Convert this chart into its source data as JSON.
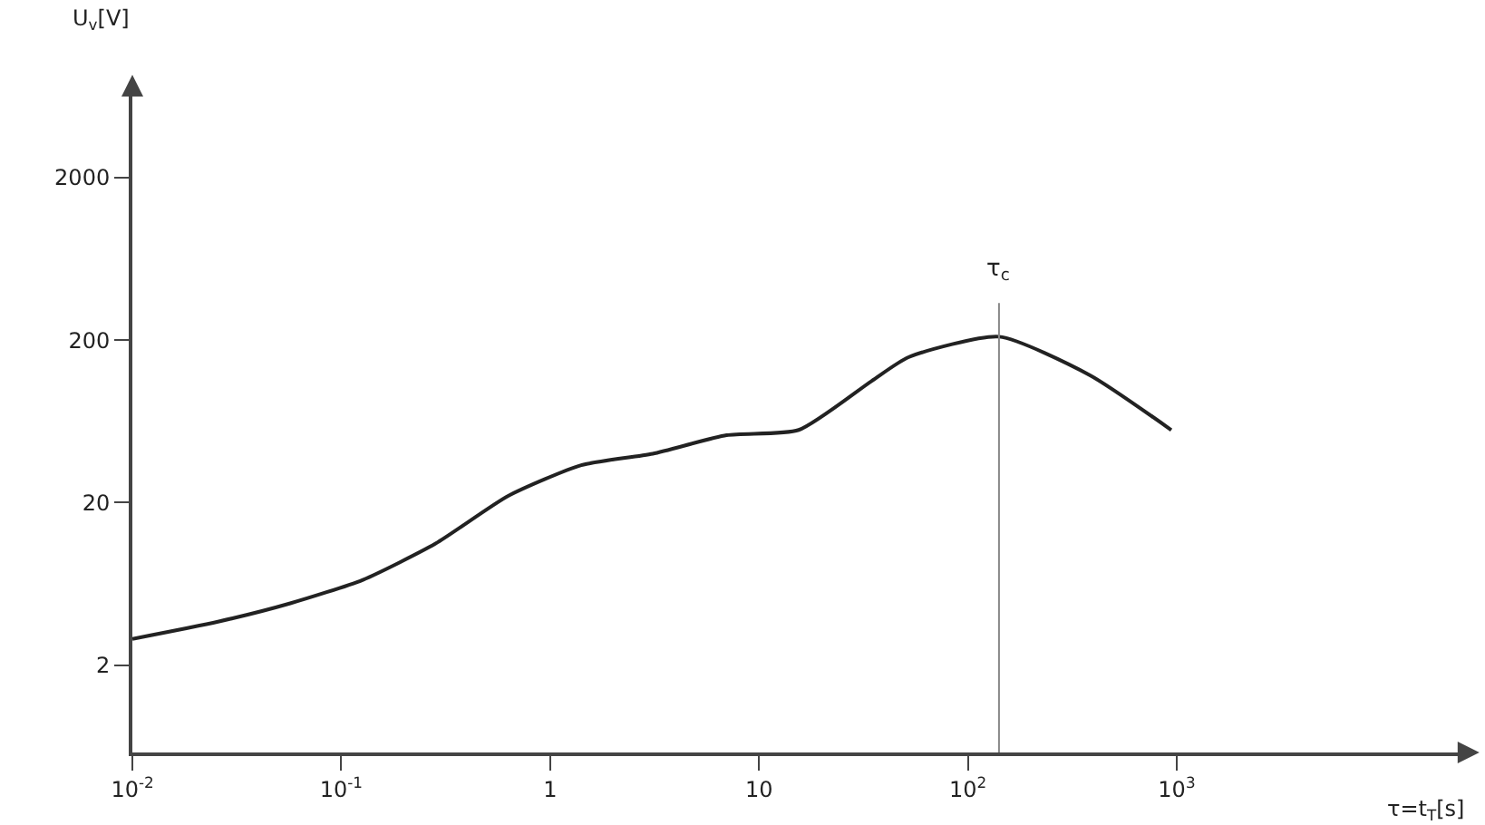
{
  "chart_data": {
    "type": "line",
    "xlabel": "τ=t$_{T}$[s]",
    "ylabel": "U$_{v}$[V]",
    "x": [
      0.01,
      0.0257,
      0.057,
      0.127,
      0.283,
      0.63,
      1.41,
      3.1,
      7.0,
      15.5,
      34.6,
      52,
      141,
      383,
      942
    ],
    "series": [
      {
        "color": "#222222",
        "values": [
          2.9,
          3.7,
          4.8,
          6.7,
          11.2,
          22,
          34,
          40,
          52,
          56,
          112,
          157,
          210,
          122,
          56
        ]
      }
    ],
    "log": "xy",
    "xlim": [
      0.01,
      25000
    ],
    "ylim": [
      0.58,
      7800
    ],
    "xticks": [
      {
        "value": 0.01,
        "label": "10$^{-2}$"
      },
      {
        "value": 0.1,
        "label": "10$^{-1}$"
      },
      1,
      10,
      {
        "value": 100,
        "label": "10$^{2}$"
      },
      {
        "value": 1000,
        "label": "10$^{3}$"
      }
    ],
    "yticks": [
      2,
      20,
      200,
      2000
    ],
    "ref_lines": [
      {
        "axis": "x",
        "value": 141,
        "label": "τ$_{c}$",
        "color": "#888888"
      }
    ],
    "grid": false
  }
}
